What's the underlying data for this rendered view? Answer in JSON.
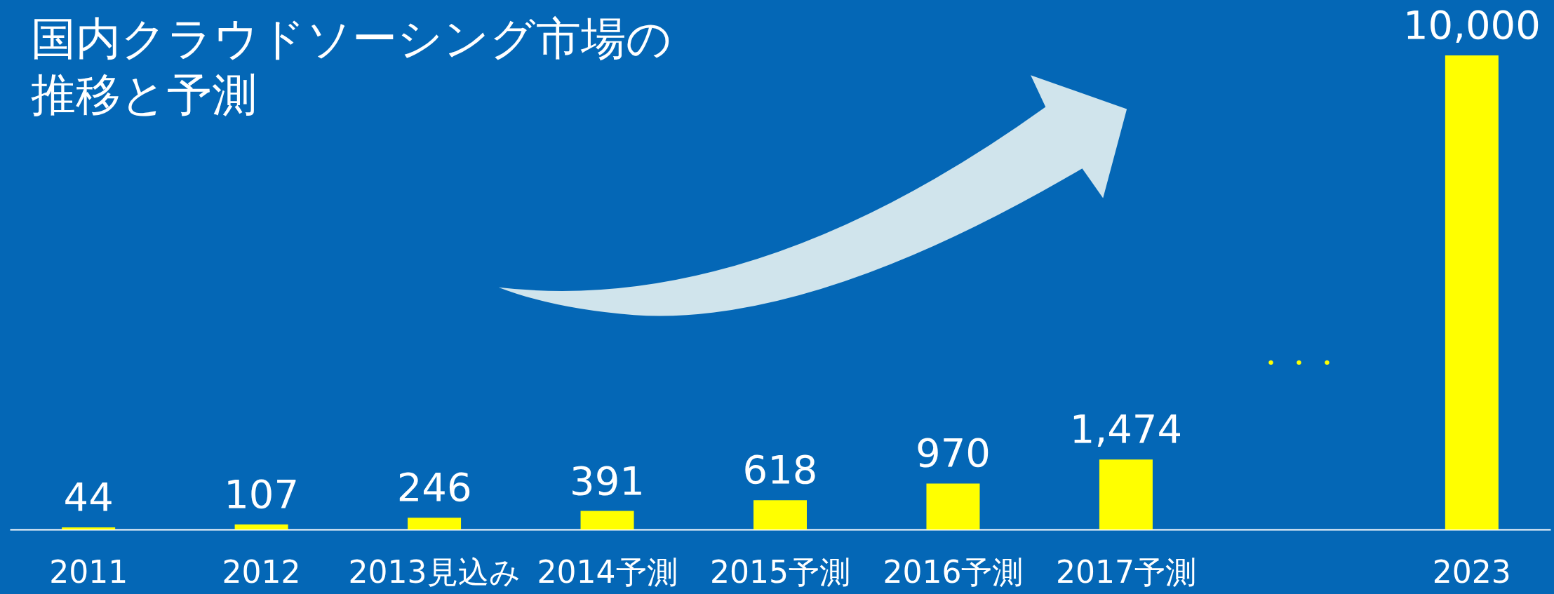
{
  "chart_data": {
    "type": "bar",
    "title": "国内クラウドソーシング市場の推移と予測",
    "categories": [
      "2011",
      "2012",
      "2013見込み",
      "2014予測",
      "2015予測",
      "2016予測",
      "2017予測",
      null,
      "2023"
    ],
    "values": [
      44,
      107,
      246,
      391,
      618,
      970,
      1474,
      null,
      10000
    ],
    "value_labels": [
      "44",
      "107",
      "246",
      "391",
      "618",
      "970",
      "1,474",
      null,
      "10,000"
    ],
    "color": "#ffff00",
    "grid": false,
    "tick_labels": "x",
    "annotations": [
      "・・・"
    ]
  }
}
